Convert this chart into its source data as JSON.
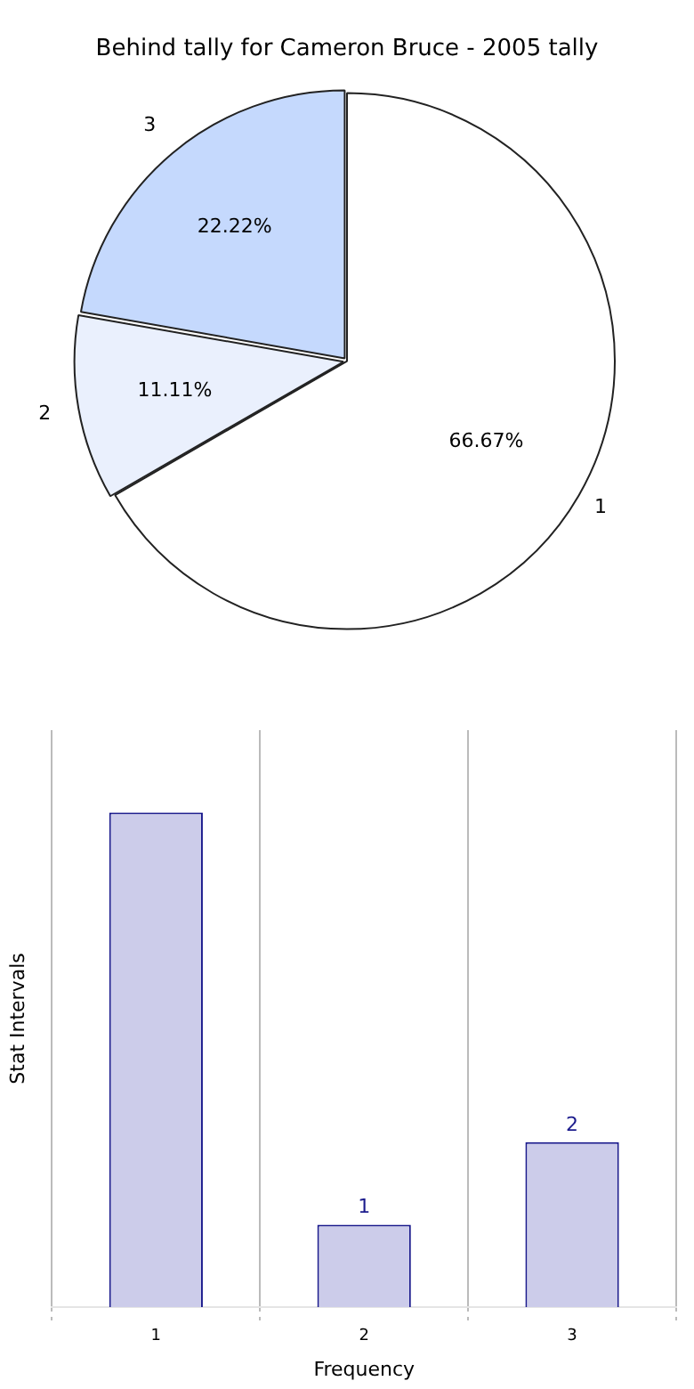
{
  "chart_data": [
    {
      "type": "pie",
      "title": "Behind tally for Cameron Bruce - 2005 tally",
      "categories": [
        "1",
        "2",
        "3"
      ],
      "values": [
        66.67,
        11.11,
        22.22
      ],
      "colors": [
        "#ffffff",
        "#eaf0fd",
        "#c5d9fd"
      ],
      "value_labels": [
        "66.67%",
        "11.11%",
        "22.22%"
      ],
      "legend": false
    },
    {
      "type": "bar",
      "xlabel": "Frequency",
      "ylabel": "Stat Intervals",
      "categories": [
        "1",
        "2",
        "3"
      ],
      "values": [
        6,
        1,
        2
      ],
      "tick_labels": "x",
      "value_labels": [
        null,
        "1",
        "2"
      ],
      "color": "#ccccea",
      "grid": "x",
      "line_style": "dotted",
      "legend": false
    }
  ]
}
